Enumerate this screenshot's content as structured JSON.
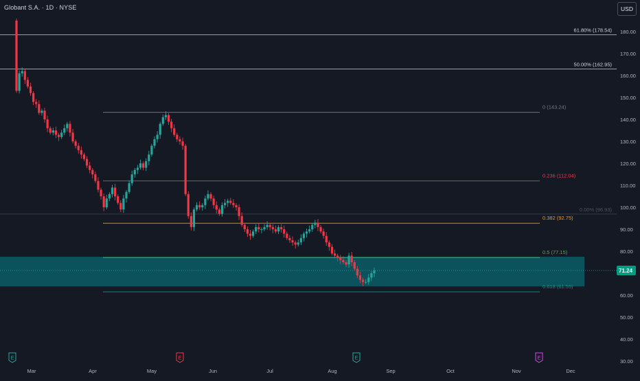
{
  "header": {
    "title": "Globant S.A. · 1D · NYSE",
    "currency": "USD"
  },
  "colors": {
    "up": "#26a69a",
    "down": "#f23645",
    "background": "#151924",
    "zone": "#0b5d66"
  },
  "price_axis": {
    "min": 30,
    "max": 185,
    "ticks": [
      "180.00",
      "170.00",
      "160.00",
      "150.00",
      "140.00",
      "130.00",
      "120.00",
      "110.00",
      "100.00",
      "90.00",
      "80.00",
      "70.00",
      "60.00",
      "50.00",
      "40.00",
      "30.00"
    ]
  },
  "time_axis": {
    "labels": [
      "Mar",
      "Apr",
      "May",
      "Jun",
      "Jul",
      "Aug",
      "Sep",
      "Oct",
      "Nov",
      "Dec"
    ]
  },
  "last_price": {
    "value": 71.24,
    "label": "71.24"
  },
  "fib_outer": [
    {
      "label": "61.80% (178.54)",
      "price": 178.54,
      "color": "#b2b5be"
    },
    {
      "label": "50.00% (162.95)",
      "price": 162.95,
      "color": "#b2b5be"
    }
  ],
  "fib_levels": [
    {
      "label": "0 (143.24)",
      "price": 143.24,
      "color": "#787b86"
    },
    {
      "label": "0.236 (112.04)",
      "price": 112.04,
      "color": "#f23645"
    },
    {
      "label": "0.382 (92.75)",
      "price": 92.75,
      "color": "#ff9800"
    },
    {
      "label": "0.5 (77.15)",
      "price": 77.15,
      "color": "#4caf50"
    },
    {
      "label": "0.618 (61.55)",
      "price": 61.55,
      "color": "#089981"
    }
  ],
  "faint_level": {
    "label": "0.00% (96.93)",
    "price": 96.93
  },
  "zone": {
    "from": 64,
    "to": 77.5
  },
  "earnings": [
    {
      "letter": "E",
      "color": "#26a69a"
    },
    {
      "letter": "E",
      "color": "#f23645"
    },
    {
      "letter": "E",
      "color": "#26a69a"
    },
    {
      "letter": "E",
      "color": "#e040fb"
    }
  ],
  "chart_data": {
    "type": "candlestick",
    "symbol": "Globant S.A.",
    "interval": "1D",
    "exchange": "NYSE",
    "ylim": [
      30,
      185
    ],
    "closes": [
      153,
      161,
      162,
      158,
      155,
      152,
      148,
      147,
      143,
      144,
      140,
      136,
      134,
      135,
      133,
      132,
      134,
      136,
      138,
      134,
      130,
      128,
      126,
      124,
      122,
      119,
      117,
      115,
      112,
      108,
      105,
      100,
      104,
      106,
      109,
      105,
      102,
      99,
      104,
      107,
      111,
      115,
      117,
      118,
      120,
      118,
      121,
      124,
      128,
      131,
      133,
      138,
      141,
      142,
      139,
      136,
      133,
      131,
      130,
      128,
      106,
      96,
      91,
      99,
      101,
      100,
      101,
      104,
      106,
      104,
      101,
      99,
      97,
      101,
      102,
      103,
      102,
      101,
      100,
      96,
      92,
      90,
      88,
      87,
      89,
      91,
      90,
      90,
      91,
      92,
      91,
      90,
      89,
      91,
      90,
      88,
      86,
      85,
      84,
      83,
      84,
      86,
      88,
      89,
      90,
      92,
      93,
      91,
      89,
      87,
      84,
      82,
      79,
      78,
      77,
      76,
      75,
      74,
      78,
      75,
      72,
      69,
      67,
      66,
      66,
      68,
      70,
      71.24
    ]
  }
}
